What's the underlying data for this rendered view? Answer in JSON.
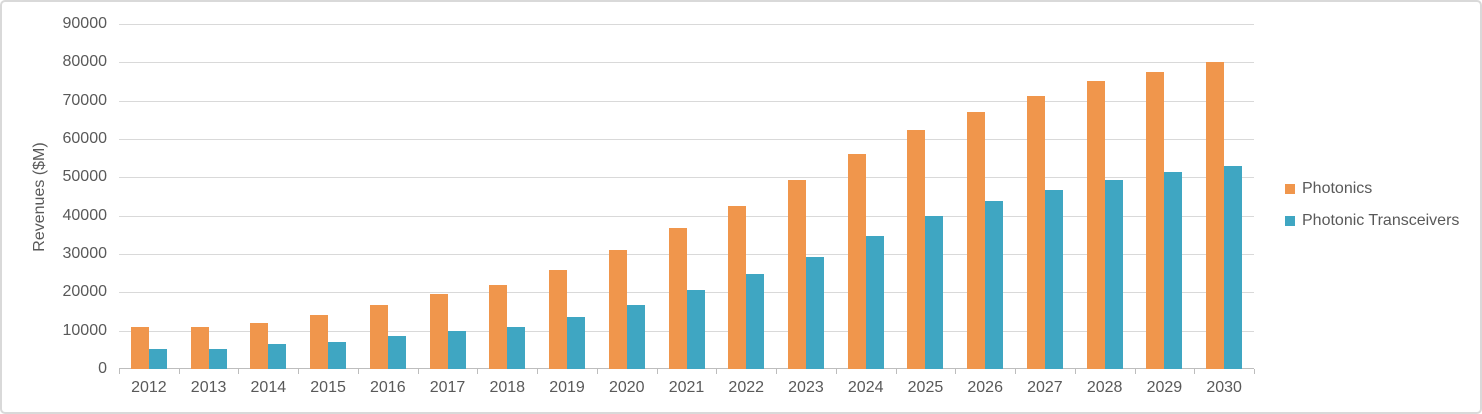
{
  "chart_data": {
    "type": "bar",
    "title": "",
    "xlabel": "",
    "ylabel": "Revenues ($M)",
    "ylim": [
      0,
      90000
    ],
    "yticks": [
      0,
      10000,
      20000,
      30000,
      40000,
      50000,
      60000,
      70000,
      80000,
      90000
    ],
    "grid": true,
    "legend_position": "right",
    "categories": [
      "2012",
      "2013",
      "2014",
      "2015",
      "2016",
      "2017",
      "2018",
      "2019",
      "2020",
      "2021",
      "2022",
      "2023",
      "2024",
      "2025",
      "2026",
      "2027",
      "2028",
      "2029",
      "2030"
    ],
    "series": [
      {
        "name": "Photonics",
        "color": "#F0964C",
        "values": [
          10900,
          10900,
          12000,
          14000,
          16700,
          19500,
          22000,
          25700,
          31000,
          36800,
          42500,
          49300,
          56100,
          62400,
          67000,
          71200,
          75000,
          77600,
          80200
        ]
      },
      {
        "name": "Photonic Transceivers",
        "color": "#3FA6C2",
        "values": [
          5300,
          5300,
          6400,
          7000,
          8600,
          10000,
          11000,
          13500,
          16700,
          20500,
          24700,
          29300,
          34700,
          40000,
          43800,
          46800,
          49300,
          51400,
          53000
        ]
      }
    ]
  },
  "styles": {
    "gridline_color": "#D9D9D9",
    "axis_color": "#BDBDBD",
    "text_color": "#595959",
    "background": "#FFFFFF"
  }
}
